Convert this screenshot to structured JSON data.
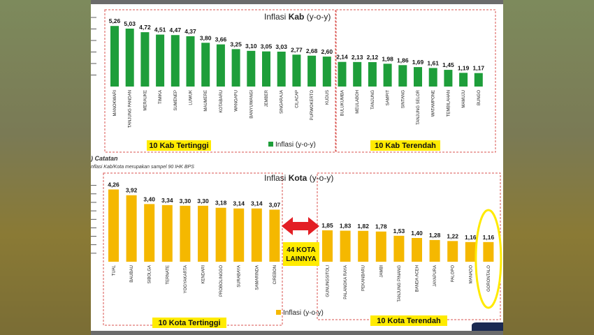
{
  "chart_data": [
    {
      "type": "bar",
      "title_prefix": "Inflasi ",
      "title_bold": "Kab",
      "title_suffix": " (y-o-y)",
      "legend": "Inflasi (y-o-y)",
      "color": "#1e9e3a",
      "categories": [
        "MANOKWARI",
        "TANJUNG PANDAN",
        "MERAUKE",
        "TIMIKA",
        "SUMENEP",
        "LUWUK",
        "MAUMERE",
        "KOTABARU",
        "WANGAPU",
        "BANYUWANGI",
        "JEMBER",
        "SINGARAJA",
        "CILACAP",
        "PURWOKERTO",
        "KUDUS",
        "BULUKUMBA",
        "MEULABOH",
        "TANJUNG",
        "SAMPIT",
        "SINTANG",
        "TANJUNG SELOR",
        "WATAMPONE",
        "TEMBILAHAN",
        "MAMUJU",
        "BUNGO"
      ],
      "values": [
        5.26,
        5.03,
        4.72,
        4.51,
        4.47,
        4.37,
        3.8,
        3.66,
        3.25,
        3.1,
        3.05,
        3.03,
        2.77,
        2.68,
        2.6,
        2.14,
        2.13,
        2.12,
        1.98,
        1.86,
        1.69,
        1.61,
        1.45,
        1.19,
        1.17
      ],
      "value_labels": [
        "5,26",
        "5,03",
        "4,72",
        "4,51",
        "4,47",
        "4,37",
        "3,80",
        "3,66",
        "3,25",
        "3,10",
        "3,05",
        "3,03",
        "2,77",
        "2,68",
        "2,60",
        "2,14",
        "2,13",
        "2,12",
        "1,98",
        "1,86",
        "1,69",
        "1,61",
        "1,45",
        "1,19",
        "1,17"
      ],
      "group_labels": [
        "10 Kab Tertinggi",
        "10 Kab Terendah"
      ]
    },
    {
      "type": "bar",
      "title_prefix": "Inflasi ",
      "title_bold": "Kota",
      "title_suffix": " (y-o-y)",
      "legend": "Inflasi (y-o-y)",
      "color": "#f5b800",
      "categories": [
        "TUAL",
        "BAUBAU",
        "SIBOLGA",
        "TERNATE",
        "YOGYAKARTA",
        "KENDARI",
        "PROBOLINGGO",
        "SURABAYA",
        "SAMARINDA",
        "CIREBON",
        "GUNUNGSITOLI",
        "PALANGKA RAYA",
        "PEKANBARU",
        "JAMBI",
        "TANJUNG PINANG",
        "BANDA ACEH",
        "JAYAPURA",
        "PALOPO",
        "MANADO",
        "GORONTALO"
      ],
      "values": [
        4.26,
        3.92,
        3.4,
        3.34,
        3.3,
        3.3,
        3.18,
        3.14,
        3.14,
        3.07,
        1.85,
        1.83,
        1.82,
        1.78,
        1.53,
        1.4,
        1.28,
        1.22,
        1.16,
        1.16
      ],
      "value_labels": [
        "4,26",
        "3,92",
        "3,40",
        "3,34",
        "3,30",
        "3,30",
        "3,18",
        "3,14",
        "3,14",
        "3,07",
        "1,85",
        "1,83",
        "1,82",
        "1,78",
        "1,53",
        "1,40",
        "1,28",
        "1,22",
        "1,16",
        "1,16"
      ],
      "group_labels": [
        "10 Kota Tertinggi",
        "10 Kota Terendah"
      ],
      "middle_label": "44 KOTA LAINNYA",
      "highlight": "GORONTALO"
    }
  ],
  "notes": {
    "heading": ") Catatan",
    "text": "nflasi Kab/Kota merupakan sampel 90 IHK BPS"
  },
  "colors": {
    "accent_red": "#e31e24",
    "group_box": "#d9534f",
    "label_bg": "#ffeb00",
    "highlight_ring": "#ffea00"
  }
}
